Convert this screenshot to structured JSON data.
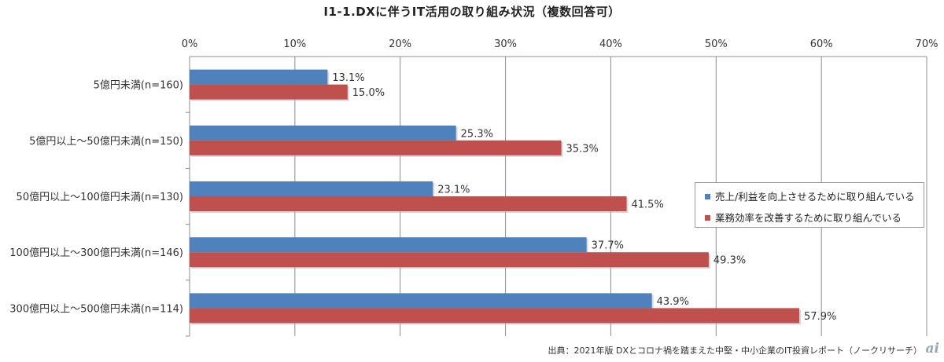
{
  "chart_data": {
    "type": "bar",
    "orientation": "horizontal",
    "title": "I1-1.DXに伴うIT活用の取り組み状況（複数回答可）",
    "categories": [
      "5億円未満(n=160)",
      "5億円以上～50億円未満(n=150)",
      "50億円以上～100億円未満(n=130)",
      "100億円以上～300億円未満(n=146)",
      "300億円以上～500億円未満(n=114)"
    ],
    "series": [
      {
        "name": "売上/利益を向上させるために取り組んでいる",
        "color": "#4f81bd",
        "values": [
          13.1,
          25.3,
          23.1,
          37.7,
          43.9
        ],
        "labels": [
          "13.1%",
          "25.3%",
          "23.1%",
          "37.7%",
          "43.9%"
        ]
      },
      {
        "name": "業務効率を改善するために取り組んでいる",
        "color": "#c0504d",
        "values": [
          15.0,
          35.3,
          41.5,
          49.3,
          57.9
        ],
        "labels": [
          "15.0%",
          "35.3%",
          "41.5%",
          "49.3%",
          "57.9%"
        ]
      }
    ],
    "xlim": [
      0,
      70
    ],
    "xticks": [
      "0%",
      "10%",
      "20%",
      "30%",
      "40%",
      "50%",
      "60%",
      "70%"
    ],
    "grid": true,
    "legend_position": "right"
  },
  "source": "出典：2021年版 DXとコロナ禍を踏まえた中堅・中小企業のIT投資レポート（ノークリサーチ）",
  "logo": "ai"
}
